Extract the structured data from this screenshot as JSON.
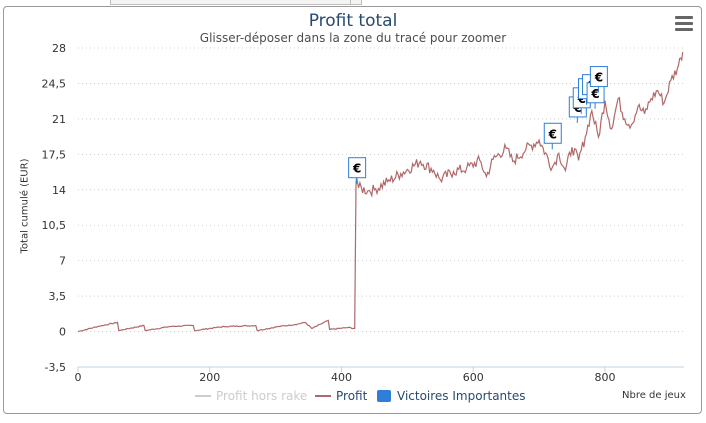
{
  "chart_data": {
    "type": "line",
    "title": "Profit total",
    "subtitle": "Glisser-déposer dans la zone du tracé pour zoomer",
    "xlabel": "Nbre de jeux",
    "ylabel": "Total cumulé (EUR)",
    "xlim": [
      0,
      920
    ],
    "ylim": [
      -3.5,
      28
    ],
    "x_ticks": [
      "0",
      "200",
      "400",
      "600",
      "800"
    ],
    "x_tick_values": [
      0,
      200,
      400,
      600,
      800
    ],
    "y_ticks": [
      "-3,5",
      "0",
      "3,5",
      "7",
      "10,5",
      "14",
      "17,5",
      "21",
      "24,5",
      "28"
    ],
    "y_tick_values": [
      -3.5,
      0,
      3.5,
      7,
      10.5,
      14,
      17.5,
      21,
      24.5,
      28
    ],
    "grid": true,
    "legend_position": "bottom",
    "series": [
      {
        "name": "Profit hors rake",
        "color": "#cccccc",
        "visible": false,
        "x": [],
        "y": []
      },
      {
        "name": "Profit",
        "color": "#b06868",
        "visible": true,
        "x": [
          0,
          30,
          60,
          62,
          100,
          102,
          140,
          175,
          177,
          210,
          225,
          270,
          272,
          305,
          330,
          345,
          355,
          380,
          382,
          410,
          420,
          422,
          423,
          426,
          440,
          450,
          470,
          490,
          520,
          540,
          550,
          570,
          590,
          610,
          620,
          630,
          650,
          660,
          680,
          700,
          720,
          730,
          740,
          750,
          760,
          770,
          780,
          790,
          800,
          810,
          820,
          830,
          840,
          850,
          860,
          870,
          880,
          890,
          900,
          910,
          915,
          918
        ],
        "y": [
          0,
          0.5,
          0.9,
          0.1,
          0.6,
          0.1,
          0.5,
          0.6,
          0.1,
          0.4,
          0.5,
          0.6,
          0.1,
          0.5,
          0.7,
          0.9,
          0.3,
          1.1,
          0.2,
          0.4,
          0.3,
          14.6,
          15.2,
          14.2,
          13.9,
          14.0,
          14.8,
          15.6,
          16.8,
          15.9,
          15.0,
          15.8,
          16.1,
          16.9,
          15.3,
          17.0,
          18.1,
          16.8,
          18.0,
          18.9,
          16.2,
          17.6,
          15.9,
          18.2,
          16.9,
          19.2,
          21.8,
          19.2,
          22.8,
          20.0,
          23.0,
          21.0,
          20.4,
          22.2,
          21.5,
          23.0,
          23.8,
          22.6,
          24.8,
          26.0,
          27.0,
          27.6
        ]
      },
      {
        "name": "Victoires Importantes",
        "color": "#2f7ed8",
        "visible": true,
        "flags": [
          {
            "x": 423,
            "y": 14.6,
            "label": "€"
          },
          {
            "x": 720,
            "y": 18.0,
            "label": "€"
          },
          {
            "x": 758,
            "y": 20.6,
            "label": "€"
          },
          {
            "x": 764,
            "y": 21.5,
            "label": "€"
          },
          {
            "x": 772,
            "y": 22.4,
            "label": "€"
          },
          {
            "x": 778,
            "y": 22.8,
            "label": "€"
          },
          {
            "x": 785,
            "y": 22.0,
            "label": "€"
          },
          {
            "x": 790,
            "y": 23.6,
            "label": "€"
          }
        ]
      }
    ]
  }
}
